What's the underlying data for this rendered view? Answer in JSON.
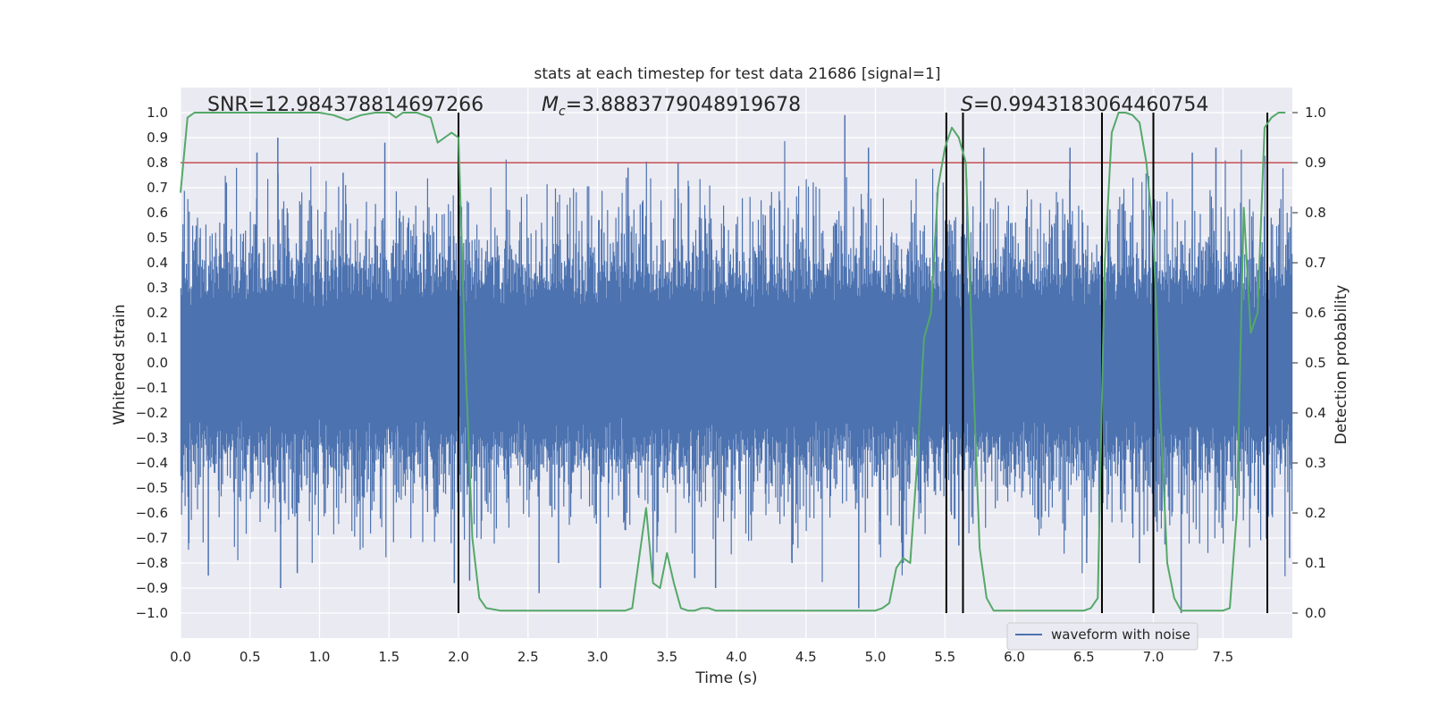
{
  "chart_data": {
    "type": "line",
    "title": "stats at each timestep for test data 21686 [signal=1]",
    "xlabel": "Time (s)",
    "ylabel_left": "Whitened strain",
    "ylabel_right": "Detection probability",
    "xlim": [
      0.0,
      8.0
    ],
    "ylim_left": [
      -1.1,
      1.1
    ],
    "ylim_right": [
      -0.05,
      1.05
    ],
    "xticks": [
      "0.0",
      "0.5",
      "1.0",
      "1.5",
      "2.0",
      "2.5",
      "3.0",
      "3.5",
      "4.0",
      "4.5",
      "5.0",
      "5.5",
      "6.0",
      "6.5",
      "7.0",
      "7.5"
    ],
    "xtick_values": [
      0.0,
      0.5,
      1.0,
      1.5,
      2.0,
      2.5,
      3.0,
      3.5,
      4.0,
      4.5,
      5.0,
      5.5,
      6.0,
      6.5,
      7.0,
      7.5
    ],
    "yticks_left": [
      "−1.0",
      "−0.9",
      "−0.8",
      "−0.7",
      "−0.6",
      "−0.5",
      "−0.4",
      "−0.3",
      "−0.2",
      "−0.1",
      "0.0",
      "0.1",
      "0.2",
      "0.3",
      "0.4",
      "0.5",
      "0.6",
      "0.7",
      "0.8",
      "0.9",
      "1.0"
    ],
    "ytick_values_left": [
      -1.0,
      -0.9,
      -0.8,
      -0.7,
      -0.6,
      -0.5,
      -0.4,
      -0.3,
      -0.2,
      -0.1,
      0.0,
      0.1,
      0.2,
      0.3,
      0.4,
      0.5,
      0.6,
      0.7,
      0.8,
      0.9,
      1.0
    ],
    "yticks_right": [
      "0.0",
      "0.1",
      "0.2",
      "0.3",
      "0.4",
      "0.5",
      "0.6",
      "0.7",
      "0.8",
      "0.9",
      "1.0"
    ],
    "ytick_values_right": [
      0.0,
      0.1,
      0.2,
      0.3,
      0.4,
      0.5,
      0.6,
      0.7,
      0.8,
      0.9,
      1.0
    ],
    "annotations": {
      "snr": "SNR=12.984378814697266",
      "mc_symbol": "M",
      "mc_sub": "c",
      "mc_value": "=3.8883779048919678",
      "s_symbol": "S",
      "s_value": "=0.9943183064460754"
    },
    "threshold": {
      "value": 0.9,
      "axis": "right",
      "color": "#c44e52"
    },
    "vertical_lines": [
      2.0,
      5.51,
      5.63,
      6.63,
      7.0,
      7.82
    ],
    "series": [
      {
        "name": "waveform with noise",
        "type": "noise-waveform",
        "color": "#4c72b0",
        "sample_count": 1600,
        "core_amplitude": 0.38,
        "spikes": [
          {
            "t": 0.06,
            "v": -0.72
          },
          {
            "t": 0.2,
            "v": -0.85
          },
          {
            "t": 0.33,
            "v": 0.72
          },
          {
            "t": 0.55,
            "v": 0.84
          },
          {
            "t": 0.7,
            "v": 0.9
          },
          {
            "t": 0.72,
            "v": -0.9
          },
          {
            "t": 0.84,
            "v": -0.84
          },
          {
            "t": 1.17,
            "v": 0.76
          },
          {
            "t": 1.47,
            "v": 0.88
          },
          {
            "t": 1.97,
            "v": -0.88
          },
          {
            "t": 2.08,
            "v": -0.87
          },
          {
            "t": 2.58,
            "v": -0.92
          },
          {
            "t": 2.72,
            "v": -0.8
          },
          {
            "t": 3.02,
            "v": -0.9
          },
          {
            "t": 3.22,
            "v": 0.78
          },
          {
            "t": 3.4,
            "v": -0.86
          },
          {
            "t": 3.58,
            "v": 0.8
          },
          {
            "t": 3.7,
            "v": -0.86
          },
          {
            "t": 3.85,
            "v": -0.9
          },
          {
            "t": 4.4,
            "v": -0.8
          },
          {
            "t": 4.78,
            "v": 0.99
          },
          {
            "t": 4.88,
            "v": -0.98
          },
          {
            "t": 4.95,
            "v": 0.86
          },
          {
            "t": 5.2,
            "v": -0.8
          },
          {
            "t": 5.6,
            "v": -0.73
          },
          {
            "t": 5.78,
            "v": 0.86
          },
          {
            "t": 6.4,
            "v": 0.86
          },
          {
            "t": 6.52,
            "v": -0.8
          },
          {
            "t": 6.9,
            "v": -0.8
          },
          {
            "t": 7.2,
            "v": -1.0
          },
          {
            "t": 7.28,
            "v": 0.84
          },
          {
            "t": 7.45,
            "v": 0.86
          },
          {
            "t": 7.98,
            "v": -0.78
          }
        ]
      },
      {
        "name": "detection probability",
        "type": "line",
        "axis": "right",
        "color": "#55a868",
        "x": [
          0.0,
          0.05,
          0.1,
          0.2,
          0.4,
          0.6,
          0.8,
          1.0,
          1.1,
          1.2,
          1.3,
          1.4,
          1.5,
          1.55,
          1.6,
          1.7,
          1.8,
          1.85,
          1.9,
          1.95,
          2.0,
          2.05,
          2.1,
          2.15,
          2.2,
          2.3,
          2.4,
          2.6,
          2.8,
          3.0,
          3.1,
          3.2,
          3.25,
          3.3,
          3.35,
          3.4,
          3.45,
          3.5,
          3.55,
          3.6,
          3.65,
          3.7,
          3.75,
          3.8,
          3.85,
          3.9,
          4.0,
          4.1,
          4.2,
          4.3,
          4.4,
          4.45,
          4.5,
          4.6,
          4.8,
          5.0,
          5.05,
          5.1,
          5.15,
          5.2,
          5.25,
          5.3,
          5.35,
          5.4,
          5.45,
          5.5,
          5.55,
          5.6,
          5.65,
          5.7,
          5.75,
          5.8,
          5.85,
          5.9,
          6.0,
          6.1,
          6.2,
          6.4,
          6.5,
          6.55,
          6.6,
          6.65,
          6.7,
          6.75,
          6.8,
          6.85,
          6.9,
          6.95,
          7.0,
          7.05,
          7.1,
          7.15,
          7.2,
          7.3,
          7.4,
          7.5,
          7.55,
          7.6,
          7.65,
          7.7,
          7.75,
          7.8,
          7.85,
          7.9,
          7.95
        ],
        "y": [
          0.84,
          0.99,
          1.0,
          1.0,
          1.0,
          1.0,
          1.0,
          1.0,
          0.995,
          0.985,
          0.995,
          1.0,
          1.0,
          0.99,
          1.0,
          1.0,
          0.99,
          0.94,
          0.95,
          0.96,
          0.95,
          0.5,
          0.15,
          0.03,
          0.01,
          0.005,
          0.005,
          0.005,
          0.005,
          0.005,
          0.005,
          0.005,
          0.01,
          0.11,
          0.21,
          0.06,
          0.05,
          0.12,
          0.06,
          0.01,
          0.005,
          0.005,
          0.01,
          0.01,
          0.005,
          0.005,
          0.005,
          0.005,
          0.005,
          0.005,
          0.005,
          0.005,
          0.005,
          0.005,
          0.005,
          0.005,
          0.01,
          0.02,
          0.09,
          0.11,
          0.1,
          0.3,
          0.55,
          0.6,
          0.85,
          0.93,
          0.97,
          0.95,
          0.9,
          0.5,
          0.13,
          0.03,
          0.005,
          0.005,
          0.005,
          0.005,
          0.005,
          0.005,
          0.005,
          0.01,
          0.03,
          0.7,
          0.96,
          1.0,
          1.0,
          0.995,
          0.98,
          0.9,
          0.75,
          0.4,
          0.1,
          0.03,
          0.005,
          0.005,
          0.005,
          0.005,
          0.01,
          0.2,
          0.81,
          0.56,
          0.6,
          0.97,
          0.99,
          1.0,
          1.0
        ]
      }
    ],
    "legend": {
      "label": "waveform with noise",
      "location": "lower-right"
    }
  }
}
